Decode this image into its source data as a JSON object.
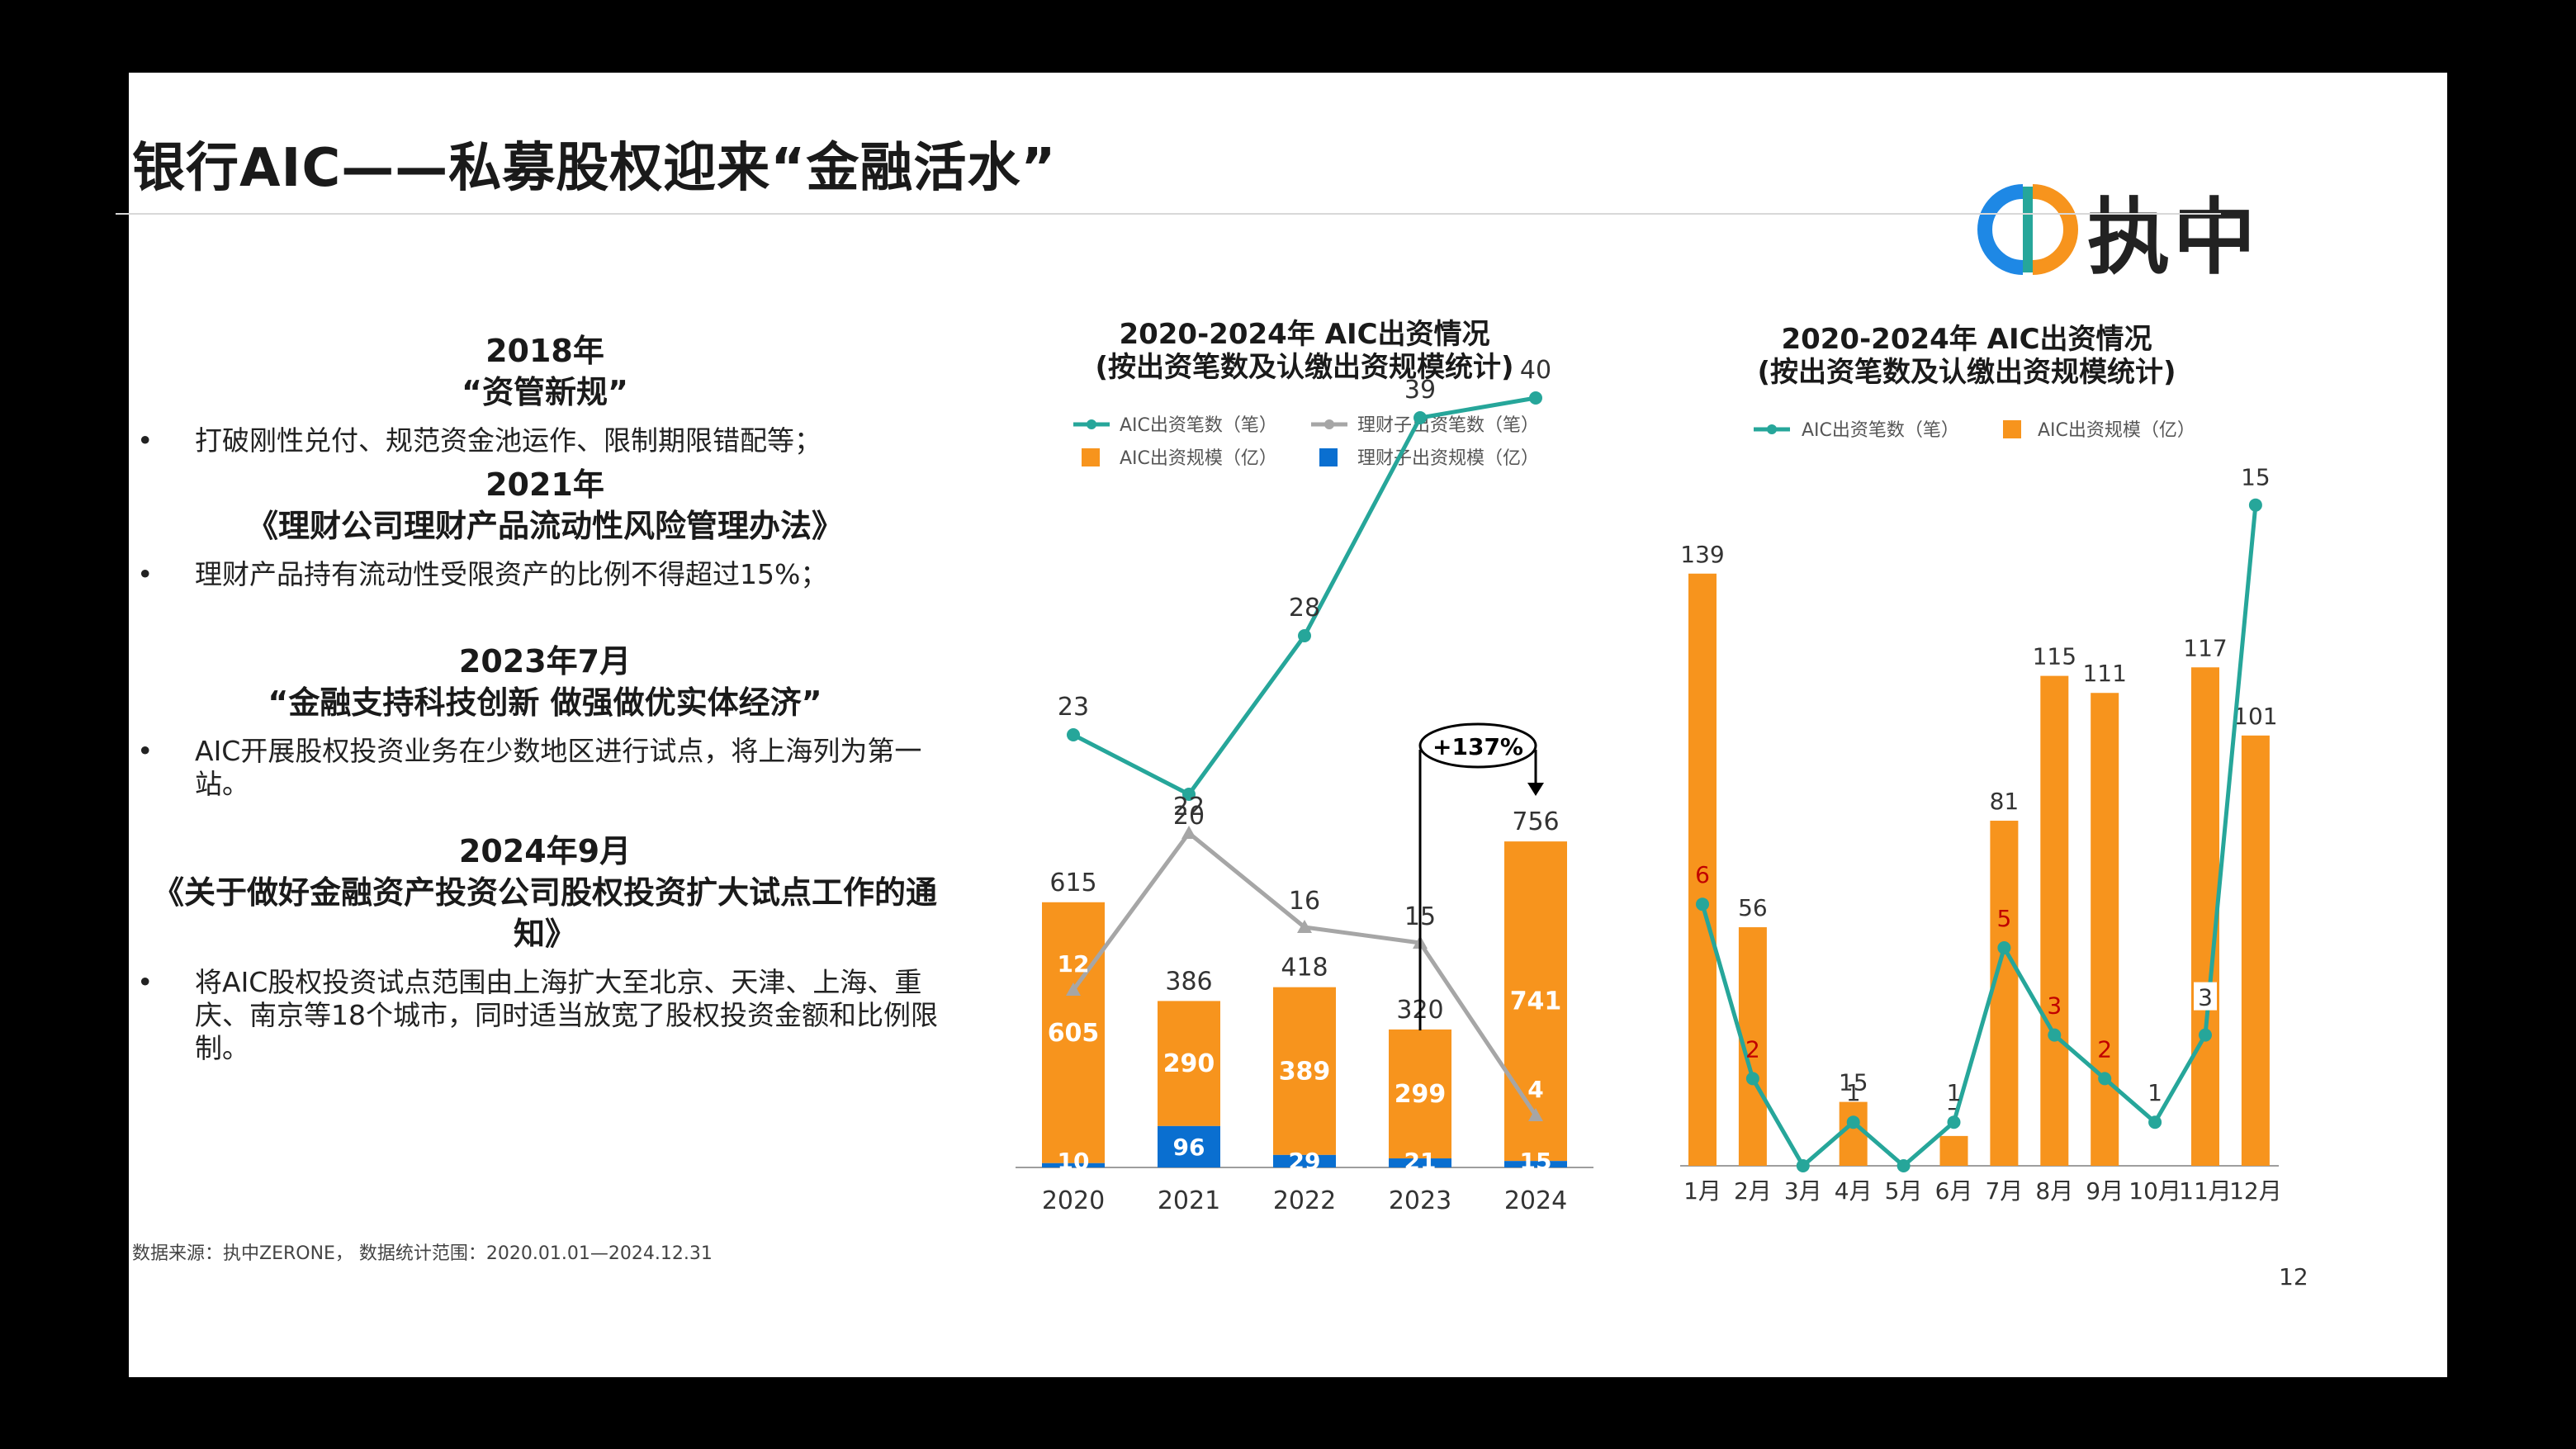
{
  "slide": {
    "title": "银行AIC——私募股权迎来“金融活水”",
    "logo_text": "执中",
    "page_number": "12",
    "footnote": "数据来源：执中ZERONE， 数据统计范围：2020.01.01—2024.12.31"
  },
  "sections": [
    {
      "year": "2018年",
      "title": "“资管新规”",
      "bullet": "打破刚性兑付、规范资金池运作、限制期限错配等；"
    },
    {
      "year": "2021年",
      "title": "《理财公司理财产品流动性风险管理办法》",
      "bullet": "理财产品持有流动性受限资产的比例不得超过15%；"
    },
    {
      "year": "2023年7月",
      "title": "“金融支持科技创新 做强做优实体经济”",
      "bullet": "AIC开展股权投资业务在少数地区进行试点，将上海列为第一站。"
    },
    {
      "year": "2024年9月",
      "title": "《关于做好金融资产投资公司股权投资扩大试点工作的通知》",
      "bullet": "将AIC股权投资试点范围由上海扩大至北京、天津、上海、重庆、南京等18个城市，同时适当放宽了股权投资金额和比例限制。"
    }
  ],
  "bullet_symbol": "•",
  "chart_data": [
    {
      "type": "bar",
      "title_line1": "2020-2024年 AIC出资情况",
      "title_line2": "(按出资笔数及认缴出资规模统计)",
      "categories": [
        "2020",
        "2021",
        "2022",
        "2023",
        "2024"
      ],
      "series": [
        {
          "name": "AIC出资规模（亿）",
          "kind": "bar-stack",
          "color": "#F7941D",
          "values": [
            605,
            290,
            389,
            299,
            741
          ],
          "labels": [
            "605",
            "290",
            "389",
            "299",
            "741"
          ]
        },
        {
          "name": "理财子出资规模（亿）",
          "kind": "bar-stack",
          "color": "#0A6FD0",
          "values": [
            10,
            96,
            29,
            21,
            15
          ],
          "labels": [
            "10",
            "96",
            "29",
            "21",
            "15"
          ]
        },
        {
          "name": "AIC出资笔数（笔）",
          "kind": "line",
          "color": "#26A69A",
          "values": [
            23,
            20,
            28,
            39,
            40
          ],
          "labels": [
            "23",
            "20",
            "28",
            "39",
            "40"
          ]
        },
        {
          "name": "理财子出资笔数（笔）",
          "kind": "line",
          "color": "#A6A6A6",
          "values": [
            12,
            22,
            16,
            15,
            4
          ],
          "labels": [
            "12",
            "22",
            "16",
            "15",
            "4"
          ]
        }
      ],
      "totals": [
        "615",
        "386",
        "418",
        "320",
        "756"
      ],
      "annotation": "+137%",
      "colors": {
        "aic_bar": "#F7941D",
        "licai_bar": "#0A6FD0",
        "aic_line": "#26A69A",
        "licai_line": "#A6A6A6"
      }
    },
    {
      "type": "bar",
      "title_line1": "2020-2024年 AIC出资情况",
      "title_line2": "(按出资笔数及认缴出资规模统计)",
      "categories": [
        "1月",
        "2月",
        "3月",
        "4月",
        "5月",
        "6月",
        "7月",
        "8月",
        "9月",
        "10月",
        "11月",
        "12月"
      ],
      "series": [
        {
          "name": "AIC出资规模（亿）",
          "kind": "bar",
          "color": "#F7941D",
          "values": [
            139,
            56,
            0,
            15,
            0,
            7,
            81,
            115,
            111,
            0,
            117,
            101
          ],
          "labels": [
            "139",
            "56",
            "",
            "15",
            "",
            "7",
            "81",
            "115",
            "111",
            "",
            "117",
            "101"
          ]
        },
        {
          "name": "AIC出资笔数（笔）",
          "kind": "line",
          "color": "#26A69A",
          "values": [
            6,
            2,
            0,
            1,
            0,
            1,
            5,
            3,
            2,
            1,
            3,
            15
          ],
          "labels": [
            "6",
            "2",
            "",
            "1",
            "",
            "1",
            "5",
            "3",
            "2",
            "1",
            "3",
            "15"
          ]
        }
      ],
      "colors": {
        "bar": "#F7941D",
        "line": "#26A69A",
        "red_label": "#C00000"
      }
    }
  ]
}
